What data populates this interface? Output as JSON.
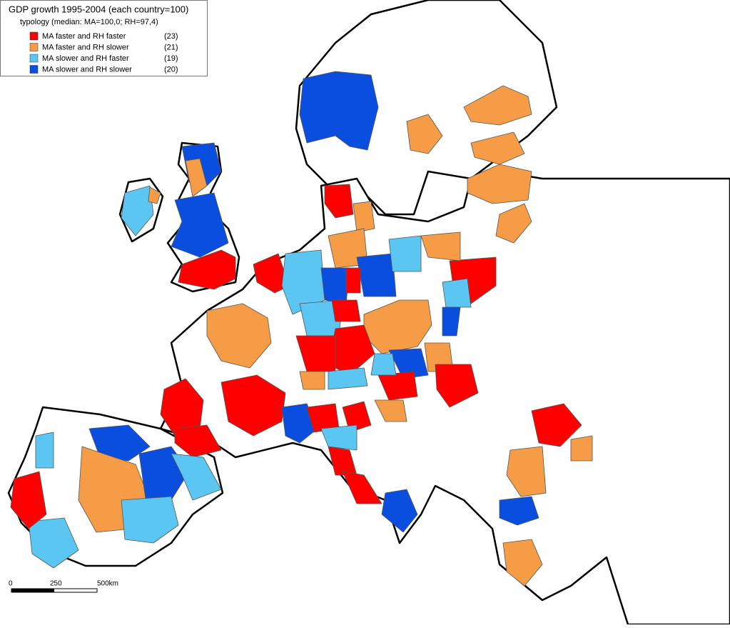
{
  "header": {
    "title": "GDP growth 1995-2004 (each country=100)",
    "subtitle": "typology (median: MA=100,0; RH=97,4)"
  },
  "legend": {
    "items": [
      {
        "label": "MA faster and RH faster",
        "count": "(23)",
        "color": "#ff0000"
      },
      {
        "label": "MA faster and RH slower",
        "count": "(21)",
        "color": "#f79c46"
      },
      {
        "label": "MA slower and RH faster",
        "count": "(19)",
        "color": "#5cc6f2"
      },
      {
        "label": "MA slower and RH slower",
        "count": "(20)",
        "color": "#0a4ee0"
      }
    ]
  },
  "scale_bar": {
    "labels": [
      "0",
      "250",
      "500km"
    ]
  }
}
